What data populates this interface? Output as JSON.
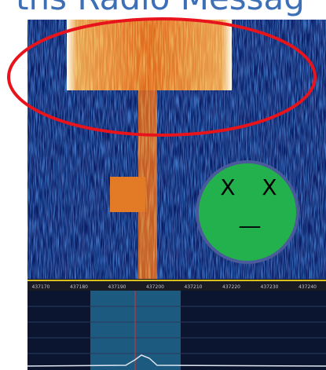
{
  "header": {
    "title": "ths Radio Messag"
  },
  "frequency_axis": {
    "labels": [
      "437170",
      "437180",
      "437190",
      "437200",
      "437210",
      "437220",
      "437230",
      "437240"
    ]
  },
  "face": {
    "left_eye": "X",
    "right_eye": "X",
    "mouth": "__"
  }
}
